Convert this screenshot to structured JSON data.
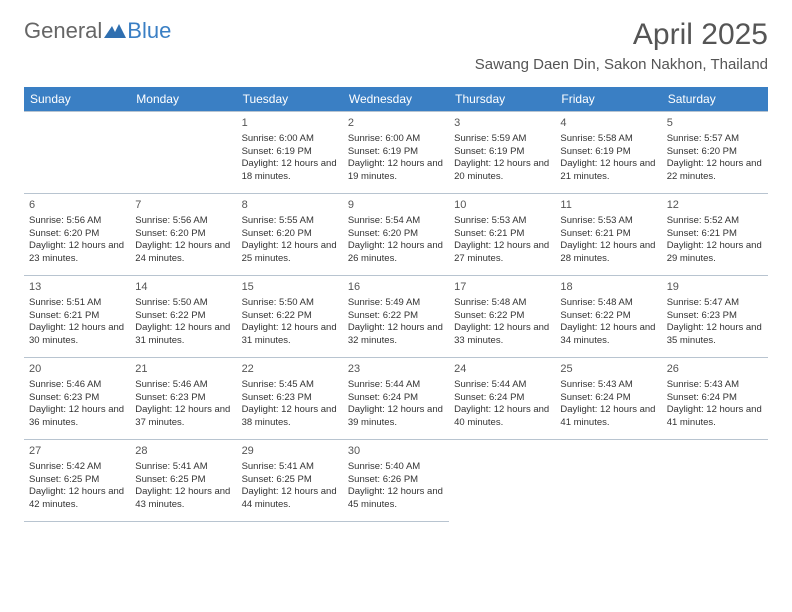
{
  "logo": {
    "text1": "General",
    "text2": "Blue",
    "icon_color": "#2f6fb0"
  },
  "title": "April 2025",
  "location": "Sawang Daen Din, Sakon Nakhon, Thailand",
  "colors": {
    "header_bg": "#3a7fc4",
    "header_fg": "#ffffff",
    "grid_line": "#b8c4d0",
    "text": "#333333"
  },
  "layout": {
    "day_fontsize": 9.5,
    "header_fontsize": 12,
    "title_fontsize": 30,
    "location_fontsize": 15
  },
  "weekdays": [
    "Sunday",
    "Monday",
    "Tuesday",
    "Wednesday",
    "Thursday",
    "Friday",
    "Saturday"
  ],
  "weeks": [
    [
      null,
      null,
      {
        "n": "1",
        "sr": "6:00 AM",
        "ss": "6:19 PM",
        "dl": "12 hours and 18 minutes."
      },
      {
        "n": "2",
        "sr": "6:00 AM",
        "ss": "6:19 PM",
        "dl": "12 hours and 19 minutes."
      },
      {
        "n": "3",
        "sr": "5:59 AM",
        "ss": "6:19 PM",
        "dl": "12 hours and 20 minutes."
      },
      {
        "n": "4",
        "sr": "5:58 AM",
        "ss": "6:19 PM",
        "dl": "12 hours and 21 minutes."
      },
      {
        "n": "5",
        "sr": "5:57 AM",
        "ss": "6:20 PM",
        "dl": "12 hours and 22 minutes."
      }
    ],
    [
      {
        "n": "6",
        "sr": "5:56 AM",
        "ss": "6:20 PM",
        "dl": "12 hours and 23 minutes."
      },
      {
        "n": "7",
        "sr": "5:56 AM",
        "ss": "6:20 PM",
        "dl": "12 hours and 24 minutes."
      },
      {
        "n": "8",
        "sr": "5:55 AM",
        "ss": "6:20 PM",
        "dl": "12 hours and 25 minutes."
      },
      {
        "n": "9",
        "sr": "5:54 AM",
        "ss": "6:20 PM",
        "dl": "12 hours and 26 minutes."
      },
      {
        "n": "10",
        "sr": "5:53 AM",
        "ss": "6:21 PM",
        "dl": "12 hours and 27 minutes."
      },
      {
        "n": "11",
        "sr": "5:53 AM",
        "ss": "6:21 PM",
        "dl": "12 hours and 28 minutes."
      },
      {
        "n": "12",
        "sr": "5:52 AM",
        "ss": "6:21 PM",
        "dl": "12 hours and 29 minutes."
      }
    ],
    [
      {
        "n": "13",
        "sr": "5:51 AM",
        "ss": "6:21 PM",
        "dl": "12 hours and 30 minutes."
      },
      {
        "n": "14",
        "sr": "5:50 AM",
        "ss": "6:22 PM",
        "dl": "12 hours and 31 minutes."
      },
      {
        "n": "15",
        "sr": "5:50 AM",
        "ss": "6:22 PM",
        "dl": "12 hours and 31 minutes."
      },
      {
        "n": "16",
        "sr": "5:49 AM",
        "ss": "6:22 PM",
        "dl": "12 hours and 32 minutes."
      },
      {
        "n": "17",
        "sr": "5:48 AM",
        "ss": "6:22 PM",
        "dl": "12 hours and 33 minutes."
      },
      {
        "n": "18",
        "sr": "5:48 AM",
        "ss": "6:22 PM",
        "dl": "12 hours and 34 minutes."
      },
      {
        "n": "19",
        "sr": "5:47 AM",
        "ss": "6:23 PM",
        "dl": "12 hours and 35 minutes."
      }
    ],
    [
      {
        "n": "20",
        "sr": "5:46 AM",
        "ss": "6:23 PM",
        "dl": "12 hours and 36 minutes."
      },
      {
        "n": "21",
        "sr": "5:46 AM",
        "ss": "6:23 PM",
        "dl": "12 hours and 37 minutes."
      },
      {
        "n": "22",
        "sr": "5:45 AM",
        "ss": "6:23 PM",
        "dl": "12 hours and 38 minutes."
      },
      {
        "n": "23",
        "sr": "5:44 AM",
        "ss": "6:24 PM",
        "dl": "12 hours and 39 minutes."
      },
      {
        "n": "24",
        "sr": "5:44 AM",
        "ss": "6:24 PM",
        "dl": "12 hours and 40 minutes."
      },
      {
        "n": "25",
        "sr": "5:43 AM",
        "ss": "6:24 PM",
        "dl": "12 hours and 41 minutes."
      },
      {
        "n": "26",
        "sr": "5:43 AM",
        "ss": "6:24 PM",
        "dl": "12 hours and 41 minutes."
      }
    ],
    [
      {
        "n": "27",
        "sr": "5:42 AM",
        "ss": "6:25 PM",
        "dl": "12 hours and 42 minutes."
      },
      {
        "n": "28",
        "sr": "5:41 AM",
        "ss": "6:25 PM",
        "dl": "12 hours and 43 minutes."
      },
      {
        "n": "29",
        "sr": "5:41 AM",
        "ss": "6:25 PM",
        "dl": "12 hours and 44 minutes."
      },
      {
        "n": "30",
        "sr": "5:40 AM",
        "ss": "6:26 PM",
        "dl": "12 hours and 45 minutes."
      },
      null,
      null,
      null
    ]
  ],
  "labels": {
    "sunrise": "Sunrise:",
    "sunset": "Sunset:",
    "daylight": "Daylight:"
  }
}
